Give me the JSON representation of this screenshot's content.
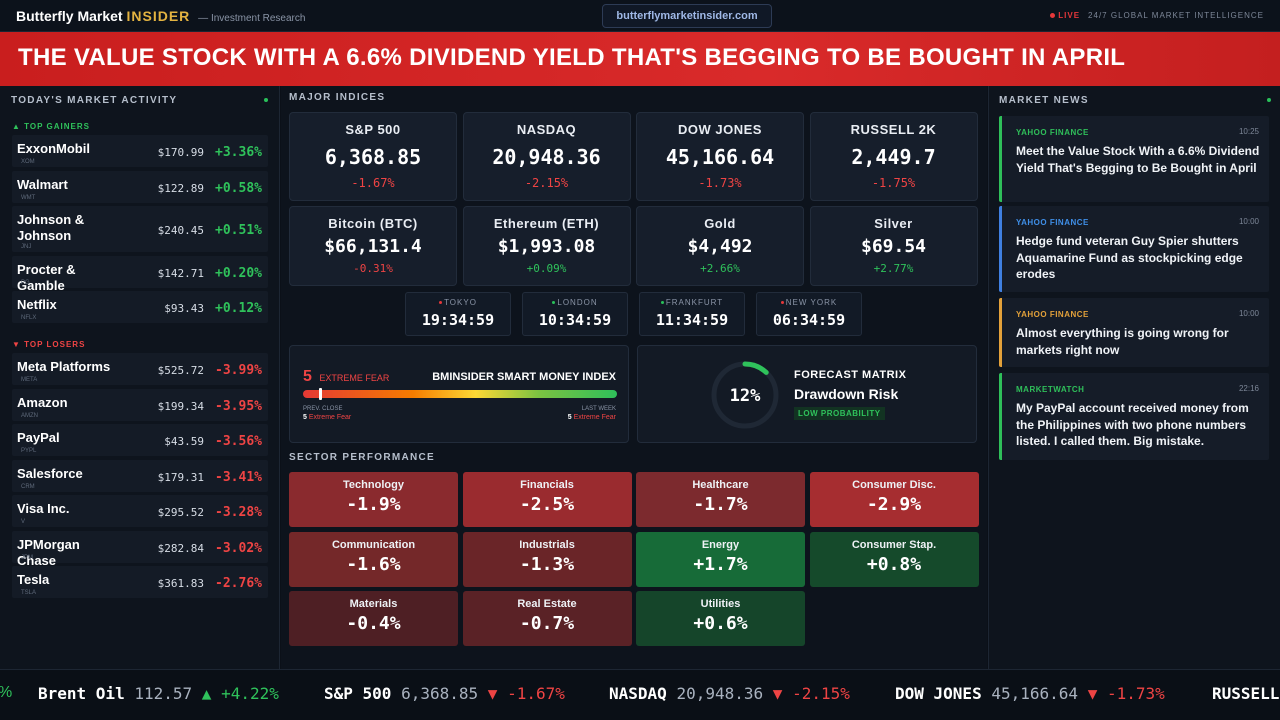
{
  "header": {
    "brand_name": "Butterfly Market",
    "brand_insider": "INSIDER",
    "brand_sub": "— Investment Research",
    "url": "butterflymarketinsider.com",
    "live_label": "LIVE",
    "tagline": "24/7 GLOBAL MARKET INTELLIGENCE"
  },
  "banner": {
    "headline": "THE VALUE STOCK WITH A 6.6% DIVIDEND YIELD THAT'S BEGGING TO BE BOUGHT IN APRIL"
  },
  "activity": {
    "title": "TODAY'S MARKET ACTIVITY",
    "gainers_label": "▲ TOP GAINERS",
    "losers_label": "▼ TOP LOSERS",
    "gainers": [
      {
        "name": "ExxonMobil",
        "ticker": "XOM",
        "price": "$170.99",
        "change": "+3.36%"
      },
      {
        "name": "Walmart",
        "ticker": "WMT",
        "price": "$122.89",
        "change": "+0.58%"
      },
      {
        "name": "Johnson & Johnson",
        "ticker": "JNJ",
        "price": "$240.45",
        "change": "+0.51%"
      },
      {
        "name": "Procter & Gamble",
        "ticker": "PG",
        "price": "$142.71",
        "change": "+0.20%"
      },
      {
        "name": "Netflix",
        "ticker": "NFLX",
        "price": "$93.43",
        "change": "+0.12%"
      }
    ],
    "losers": [
      {
        "name": "Meta Platforms",
        "ticker": "META",
        "price": "$525.72",
        "change": "-3.99%"
      },
      {
        "name": "Amazon",
        "ticker": "AMZN",
        "price": "$199.34",
        "change": "-3.95%"
      },
      {
        "name": "PayPal",
        "ticker": "PYPL",
        "price": "$43.59",
        "change": "-3.56%"
      },
      {
        "name": "Salesforce",
        "ticker": "CRM",
        "price": "$179.31",
        "change": "-3.41%"
      },
      {
        "name": "Visa Inc.",
        "ticker": "V",
        "price": "$295.52",
        "change": "-3.28%"
      },
      {
        "name": "JPMorgan Chase",
        "ticker": "JPM",
        "price": "$282.84",
        "change": "-3.02%"
      },
      {
        "name": "Tesla",
        "ticker": "TSLA",
        "price": "$361.83",
        "change": "-2.76%"
      }
    ]
  },
  "indices": {
    "title": "MAJOR INDICES",
    "cards": [
      {
        "name": "S&P 500",
        "value": "6,368.85",
        "change": "-1.67%",
        "dir": "down"
      },
      {
        "name": "NASDAQ",
        "value": "20,948.36",
        "change": "-2.15%",
        "dir": "down"
      },
      {
        "name": "DOW JONES",
        "value": "45,166.64",
        "change": "-1.73%",
        "dir": "down"
      },
      {
        "name": "RUSSELL 2K",
        "value": "2,449.7",
        "change": "-1.75%",
        "dir": "down"
      },
      {
        "name": "Bitcoin (BTC)",
        "value": "$66,131.4",
        "change": "-0.31%",
        "dir": "down"
      },
      {
        "name": "Ethereum (ETH)",
        "value": "$1,993.08",
        "change": "+0.09%",
        "dir": "up"
      },
      {
        "name": "Gold",
        "value": "$4,492",
        "change": "+2.66%",
        "dir": "up"
      },
      {
        "name": "Silver",
        "value": "$69.54",
        "change": "+2.77%",
        "dir": "up"
      }
    ]
  },
  "clocks": [
    {
      "city": "TOKYO",
      "time": "19:34:59",
      "dot": "#e5373a"
    },
    {
      "city": "LONDON",
      "time": "10:34:59",
      "dot": "#29c05a"
    },
    {
      "city": "FRANKFURT",
      "time": "11:34:59",
      "dot": "#29c05a"
    },
    {
      "city": "NEW YORK",
      "time": "06:34:59",
      "dot": "#e5373a"
    }
  ],
  "smart_money": {
    "value": "5",
    "label": "EXTREME FEAR",
    "title": "BMINSIDER SMART MONEY INDEX",
    "level_fraction": 0.05,
    "prev_label": "PREV. CLOSE",
    "prev_value": "5",
    "prev_text": "Extreme Fear",
    "week_label": "LAST WEEK",
    "week_value": "5",
    "week_text": "Extreme Fear"
  },
  "forecast": {
    "percent": "12%",
    "fraction": 0.12,
    "title": "FORECAST MATRIX",
    "subtitle": "Drawdown Risk",
    "badge": "LOW PROBABILITY"
  },
  "sectors": {
    "title": "SECTOR PERFORMANCE",
    "items": [
      {
        "name": "Technology",
        "value": "-1.9%",
        "color": "#8a2a2e"
      },
      {
        "name": "Financials",
        "value": "-2.5%",
        "color": "#9a2b2f"
      },
      {
        "name": "Healthcare",
        "value": "-1.7%",
        "color": "#7c2a2e"
      },
      {
        "name": "Consumer Disc.",
        "value": "-2.9%",
        "color": "#a62d30"
      },
      {
        "name": "Communication",
        "value": "-1.6%",
        "color": "#742829"
      },
      {
        "name": "Industrials",
        "value": "-1.3%",
        "color": "#6a2528"
      },
      {
        "name": "Energy",
        "value": "+1.7%",
        "color": "#176b38"
      },
      {
        "name": "Consumer Stap.",
        "value": "+0.8%",
        "color": "#154a2b"
      },
      {
        "name": "Materials",
        "value": "-0.4%",
        "color": "#4e1f24"
      },
      {
        "name": "Real Estate",
        "value": "-0.7%",
        "color": "#5a2226"
      },
      {
        "name": "Utilities",
        "value": "+0.6%",
        "color": "#15452a"
      }
    ]
  },
  "news": {
    "title": "MARKET NEWS",
    "items": [
      {
        "source": "YAHOO FINANCE",
        "time": "10:25",
        "headline": "Meet the Value Stock With a 6.6% Dividend Yield That's Begging to Be Bought in April",
        "accent": "#2fbf5a",
        "src_color": "#2fbf5a"
      },
      {
        "source": "YAHOO FINANCE",
        "time": "10:00",
        "headline": "Hedge fund veteran Guy Spier shutters Aquamarine Fund as stockpicking edge erodes",
        "accent": "#3f7fe0",
        "src_color": "#3f8fe8"
      },
      {
        "source": "YAHOO FINANCE",
        "time": "10:00",
        "headline": "Almost everything is going wrong for markets right now",
        "accent": "#e3a13a",
        "src_color": "#e3a13a"
      },
      {
        "source": "MARKETWATCH",
        "time": "22:16",
        "headline": "My PayPal account received money from the Philippines with two phone numbers listed. I called them. Big mistake.",
        "accent": "#2fbf5a",
        "src_color": "#2fbf5a"
      }
    ]
  },
  "ticker": {
    "lead": "%",
    "items": [
      {
        "name": "Brent Oil",
        "price": "112.57",
        "arrow": "▲",
        "change": "+4.22%",
        "dir": "up"
      },
      {
        "name": "S&P 500",
        "price": "6,368.85",
        "arrow": "▼",
        "change": "-1.67%",
        "dir": "down"
      },
      {
        "name": "NASDAQ",
        "price": "20,948.36",
        "arrow": "▼",
        "change": "-2.15%",
        "dir": "down"
      },
      {
        "name": "DOW JONES",
        "price": "45,166.64",
        "arrow": "▼",
        "change": "-1.73%",
        "dir": "down"
      },
      {
        "name": "RUSSELL",
        "price": "",
        "arrow": "",
        "change": "",
        "dir": "down"
      }
    ]
  },
  "colors": {
    "up": "#2fc25b",
    "down": "#ef4444",
    "accent_gold": "#e3b341"
  }
}
